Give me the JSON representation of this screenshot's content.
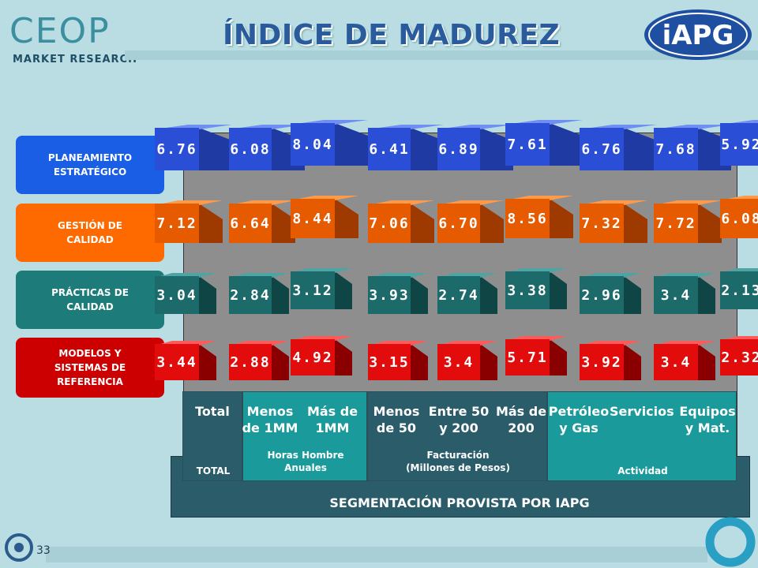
{
  "header": {
    "logo_text": "CEOP",
    "logo_subtitle": "MARKET RESEARCH",
    "title": "ÍNDICE DE MADUREZ",
    "partner_logo_text": "iAPG"
  },
  "row_labels": [
    {
      "text": "PLANEAMIENTO ESTRATÉGICO"
    },
    {
      "text": "GESTIÓN DE CALIDAD"
    },
    {
      "text": "PRÁCTICAS DE CALIDAD"
    },
    {
      "text": "MODELOS Y SISTEMAS DE REFERENCIA"
    }
  ],
  "colors": {
    "blue_front": "#2a4fd6",
    "blue_side": "#1f3aa2",
    "blue_top": "#6f8ff2",
    "orange_front": "#e65a00",
    "orange_side": "#9e3a00",
    "orange_top": "#ff9a4a",
    "teal_front": "#1d6a6a",
    "teal_side": "#0f4545",
    "teal_top": "#4ea3a3",
    "red_front": "#e20c0c",
    "red_side": "#8a0000",
    "red_top": "#ff5a5a"
  },
  "values": [
    [
      "6.76",
      "6.08",
      "8.04",
      "6.41",
      "6.89",
      "7.61",
      "6.76",
      "7.68",
      "5.92"
    ],
    [
      "7.12",
      "6.64",
      "8.44",
      "7.06",
      "6.70",
      "8.56",
      "7.32",
      "7.72",
      "6.08"
    ],
    [
      "3.04",
      "2.84",
      "3.12",
      "3.93",
      "2.74",
      "3.38",
      "2.96",
      "3.4",
      "2.13"
    ],
    [
      "3.44",
      "2.88",
      "4.92",
      "3.15",
      "3.4",
      "5.71",
      "3.92",
      "3.4",
      "2.32"
    ]
  ],
  "categories": [
    {
      "line1": "Total",
      "line2": ""
    },
    {
      "line1": "Menos",
      "line2": "de 1MM"
    },
    {
      "line1": "Más de",
      "line2": "1MM"
    },
    {
      "line1": "Menos",
      "line2": "de 50"
    },
    {
      "line1": "Entre 50",
      "line2": "y 200"
    },
    {
      "line1": "Más de",
      "line2": "200"
    },
    {
      "line1": "Petróleo",
      "line2": "y Gas"
    },
    {
      "line1": "Servicios",
      "line2": ""
    },
    {
      "line1": "Equipos",
      "line2": "y Mat."
    }
  ],
  "groups": {
    "total": "TOTAL",
    "horas_line1": "Horas Hombre",
    "horas_line2": "Anuales",
    "fact_line1": "Facturación",
    "fact_line2": "(Millones de Pesos)",
    "actividad": "Actividad"
  },
  "segmentation_label": "SEGMENTACIÓN PROVISTA POR IAPG",
  "footer": {
    "page_number": "33"
  }
}
